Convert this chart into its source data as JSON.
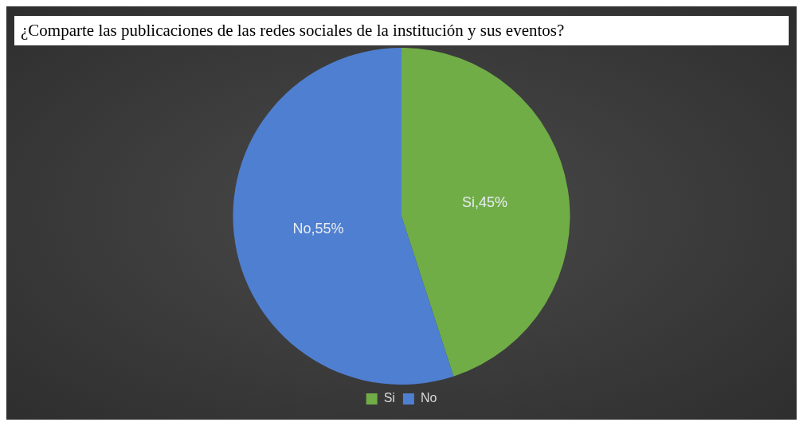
{
  "chart_data": {
    "type": "pie",
    "title": "¿Comparte las publicaciones de las redes sociales de la institución y sus eventos?",
    "categories": [
      "Si",
      "No"
    ],
    "values": [
      45,
      55
    ],
    "colors": [
      "#70ad47",
      "#4f7fd0"
    ],
    "value_labels": [
      "Si,45%",
      "No,55%"
    ],
    "legend": "bottom"
  }
}
